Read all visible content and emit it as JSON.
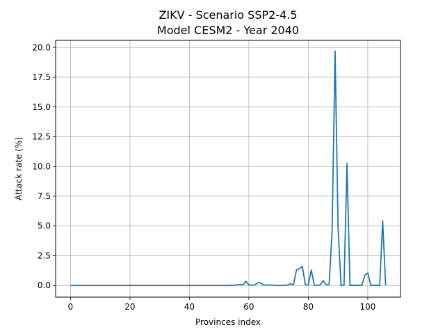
{
  "chart_data": {
    "type": "line",
    "title": "ZIKV - Scenario SSP2-4.5",
    "subtitle": "Model CESM2 - Year 2040",
    "xlabel": "Provinces index",
    "ylabel": "Attack rate (%)",
    "xlim": [
      -5,
      111
    ],
    "ylim": [
      -0.98,
      20.6
    ],
    "xticks": [
      0,
      20,
      40,
      60,
      80,
      100
    ],
    "yticks": [
      0.0,
      2.5,
      5.0,
      7.5,
      10.0,
      12.5,
      15.0,
      17.5,
      20.0
    ],
    "xtick_labels": [
      "0",
      "20",
      "40",
      "60",
      "80",
      "100"
    ],
    "ytick_labels": [
      "0.0",
      "2.5",
      "5.0",
      "7.5",
      "10.0",
      "12.5",
      "15.0",
      "17.5",
      "20.0"
    ],
    "grid": true,
    "line_color": "#1f77b4",
    "series": [
      {
        "x": [
          0,
          1,
          2,
          3,
          4,
          5,
          6,
          7,
          8,
          9,
          10,
          11,
          12,
          13,
          14,
          15,
          16,
          17,
          18,
          19,
          20,
          21,
          22,
          23,
          24,
          25,
          26,
          27,
          28,
          29,
          30,
          31,
          32,
          33,
          34,
          35,
          36,
          37,
          38,
          39,
          40,
          41,
          42,
          43,
          44,
          45,
          46,
          47,
          48,
          49,
          50,
          51,
          52,
          53,
          54,
          55,
          56,
          57,
          58,
          59,
          60,
          61,
          62,
          63,
          64,
          65,
          66,
          67,
          68,
          69,
          70,
          71,
          72,
          73,
          74,
          75,
          76,
          77,
          78,
          79,
          80,
          81,
          82,
          83,
          84,
          85,
          86,
          87,
          88,
          89,
          90,
          91,
          92,
          93,
          94,
          95,
          96,
          97,
          98,
          99,
          100,
          101,
          102,
          103,
          104,
          105,
          106
        ],
        "values": [
          0,
          0,
          0,
          0,
          0,
          0,
          0,
          0,
          0,
          0,
          0,
          0,
          0,
          0,
          0,
          0,
          0,
          0,
          0,
          0,
          0,
          0,
          0,
          0,
          0,
          0,
          0,
          0,
          0,
          0,
          0,
          0,
          0,
          0,
          0,
          0,
          0,
          0,
          0,
          0,
          0,
          0,
          0,
          0,
          0,
          0,
          0,
          0,
          0,
          0,
          0,
          0,
          0,
          0,
          0.01,
          0.02,
          0.05,
          0.08,
          0.05,
          0.35,
          0.05,
          0.02,
          0.05,
          0.22,
          0.22,
          0.03,
          0.03,
          0.05,
          0.02,
          0,
          0,
          0,
          0.02,
          0.03,
          0.15,
          0.05,
          1.3,
          1.4,
          1.6,
          0.05,
          0.05,
          1.3,
          0.02,
          0.02,
          0.05,
          0.4,
          0.05,
          0.1,
          4.6,
          19.7,
          4.9,
          0.01,
          0.02,
          10.25,
          0.01,
          0.01,
          0.01,
          0.01,
          0.01,
          0.85,
          1.05,
          0.01,
          0.01,
          0.01,
          0.01,
          5.45,
          0.01
        ]
      }
    ]
  }
}
